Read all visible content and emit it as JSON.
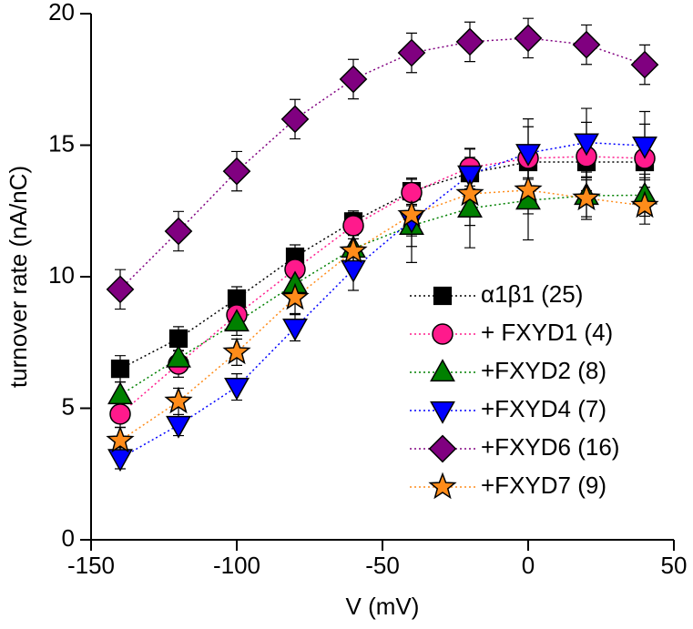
{
  "chart_data": {
    "type": "scatter",
    "x_label": "V (mV)",
    "y_label": "turnover rate (nA/nC)",
    "x": [
      -140,
      -120,
      -100,
      -80,
      -60,
      -40,
      -20,
      0,
      20,
      40
    ],
    "xlim": [
      -150,
      50
    ],
    "xticks": [
      -150,
      -100,
      -50,
      0,
      50
    ],
    "ylim": [
      0,
      20
    ],
    "yticks": [
      0,
      5,
      10,
      15,
      20
    ],
    "legend": "lower right",
    "series": [
      {
        "name": "α1β1 (25)",
        "color": "#000000",
        "marker": "square",
        "values": [
          6.5,
          7.65,
          9.17,
          10.76,
          12.1,
          13.25,
          13.94,
          14.36,
          14.36,
          14.36
        ],
        "errors": [
          0.5,
          0.45,
          0.45,
          0.45,
          0.4,
          0.5,
          0.6,
          0.6,
          0.6,
          0.6
        ]
      },
      {
        "name": "+ FXYD1 (4)",
        "color": "#ff1a8c",
        "marker": "circle",
        "values": [
          4.78,
          6.68,
          8.55,
          10.28,
          11.94,
          13.2,
          14.15,
          14.5,
          14.57,
          14.5
        ],
        "errors": [
          0.5,
          0.5,
          0.5,
          0.5,
          0.5,
          0.5,
          0.7,
          1.5,
          1.3,
          1.3
        ]
      },
      {
        "name": "+FXYD2 (8)",
        "color": "#008000",
        "marker": "triangle-up",
        "values": [
          5.5,
          6.9,
          8.27,
          9.72,
          11.07,
          11.94,
          12.6,
          12.9,
          13.08,
          13.1
        ],
        "errors": [
          0.5,
          0.5,
          0.5,
          0.5,
          0.6,
          1.4,
          1.5,
          1.5,
          0.9,
          0.8
        ]
      },
      {
        "name": "+FXYD4 (7)",
        "color": "#0000ff",
        "marker": "triangle-down",
        "values": [
          3.1,
          4.36,
          5.81,
          8.06,
          10.28,
          12.15,
          13.88,
          14.7,
          15.1,
          14.98
        ],
        "errors": [
          0.4,
          0.4,
          0.5,
          0.5,
          0.8,
          1.0,
          1.0,
          1.0,
          1.3,
          1.3
        ]
      },
      {
        "name": "+FXYD6 (16)",
        "color": "#800080",
        "marker": "diamond",
        "values": [
          9.52,
          11.73,
          14.01,
          15.99,
          17.51,
          18.51,
          18.93,
          19.07,
          18.82,
          18.06
        ],
        "errors": [
          0.75,
          0.75,
          0.75,
          0.75,
          0.75,
          0.75,
          0.75,
          0.75,
          0.75,
          0.75
        ]
      },
      {
        "name": "+FXYD7 (9)",
        "color": "#ff8c1a",
        "marker": "star",
        "values": [
          3.77,
          5.26,
          7.13,
          9.2,
          10.97,
          12.35,
          13.15,
          13.29,
          12.98,
          12.7
        ],
        "errors": [
          0.5,
          0.5,
          0.5,
          0.6,
          0.6,
          0.8,
          1.2,
          0.9,
          0.7,
          0.7
        ]
      }
    ]
  }
}
